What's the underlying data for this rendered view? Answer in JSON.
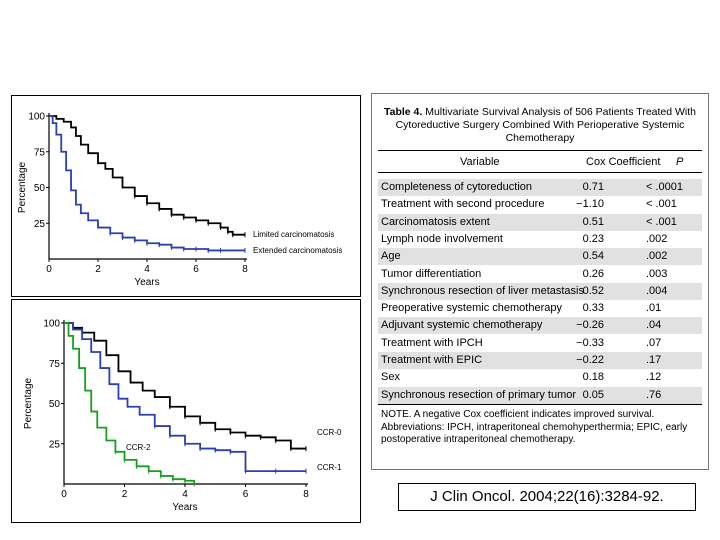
{
  "chart_data": [
    {
      "type": "line",
      "ylabel": "Percentage",
      "xlabel": "Years",
      "xlim": [
        0,
        8
      ],
      "ylim": [
        0,
        100
      ],
      "x_ticks": [
        "0",
        "2",
        "4",
        "6",
        "8"
      ],
      "y_ticks": [
        "25",
        "50",
        "75",
        "100"
      ],
      "series": [
        {
          "name": "Limited carcinomatosis",
          "color": "#000000",
          "x": [
            0,
            0.3,
            0.6,
            0.9,
            1.1,
            1.3,
            1.6,
            2.0,
            2.3,
            2.6,
            3.0,
            3.5,
            4.0,
            4.5,
            5.0,
            5.5,
            6.0,
            6.5,
            7.0,
            7.3,
            7.5,
            8.0
          ],
          "y": [
            100,
            98,
            96,
            92,
            86,
            80,
            74,
            67,
            63,
            57,
            50,
            44,
            39,
            35,
            31,
            29,
            27,
            25,
            22,
            19,
            17,
            17
          ]
        },
        {
          "name": "Extended carcinomatosis",
          "color": "#2a3fb0",
          "x": [
            0,
            0.15,
            0.3,
            0.5,
            0.7,
            0.9,
            1.1,
            1.3,
            1.6,
            2.0,
            2.5,
            3.0,
            3.5,
            4.0,
            4.5,
            5.0,
            5.5,
            6.0,
            6.5,
            7.0,
            8.0
          ],
          "y": [
            100,
            95,
            87,
            75,
            62,
            48,
            38,
            32,
            27,
            22,
            18,
            15,
            13,
            11,
            10,
            8,
            7,
            7,
            6,
            6,
            6
          ]
        }
      ]
    },
    {
      "type": "line",
      "ylabel": "Percentage",
      "xlabel": "Years",
      "xlim": [
        0,
        8
      ],
      "ylim": [
        0,
        100
      ],
      "x_ticks": [
        "0",
        "2",
        "4",
        "6",
        "8"
      ],
      "y_ticks": [
        "25",
        "50",
        "75",
        "100"
      ],
      "series": [
        {
          "name": "CCR-0",
          "color": "#000000",
          "x": [
            0,
            0.3,
            0.6,
            1.0,
            1.4,
            1.8,
            2.2,
            2.6,
            3.0,
            3.5,
            4.0,
            4.5,
            5.0,
            5.5,
            6.0,
            6.5,
            7.0,
            7.5,
            8.0
          ],
          "y": [
            100,
            97,
            94,
            89,
            80,
            70,
            63,
            58,
            54,
            48,
            42,
            38,
            34,
            32,
            30,
            29,
            27,
            22,
            22
          ]
        },
        {
          "name": "CCR-1",
          "color": "#2a3fb0",
          "x": [
            0,
            0.3,
            0.6,
            0.9,
            1.2,
            1.5,
            1.8,
            2.1,
            2.5,
            3.0,
            3.5,
            4.0,
            4.5,
            5.0,
            5.5,
            6.0,
            7.0,
            8.0
          ],
          "y": [
            100,
            96,
            90,
            82,
            72,
            62,
            53,
            48,
            43,
            36,
            30,
            25,
            22,
            21,
            20,
            8,
            8,
            8
          ]
        },
        {
          "name": "CCR-2",
          "color": "#15a11e",
          "x": [
            0,
            0.15,
            0.3,
            0.5,
            0.7,
            0.9,
            1.1,
            1.4,
            1.7,
            2.0,
            2.4,
            2.8,
            3.2,
            3.6,
            4.0,
            4.3
          ],
          "y": [
            100,
            92,
            84,
            72,
            58,
            45,
            35,
            27,
            20,
            15,
            11,
            8,
            5,
            3,
            2,
            0
          ]
        }
      ]
    }
  ],
  "table": {
    "title_bold": "Table 4.",
    "title_rest": "Multivariate Survival Analysis of 506 Patients Treated With Cytoreductive Surgery Combined With Perioperative Systemic Chemotherapy",
    "headers": {
      "variable": "Variable",
      "coef": "Cox Coefficient",
      "p": "P"
    },
    "rows": [
      {
        "variable": "Completeness of cytoreduction",
        "coef": "0.71",
        "p": "< .0001"
      },
      {
        "variable": "Treatment with second procedure",
        "coef": "−1.10",
        "p": "< .001"
      },
      {
        "variable": "Carcinomatosis extent",
        "coef": "0.51",
        "p": "< .001"
      },
      {
        "variable": "Lymph node involvement",
        "coef": "0.23",
        "p": ".002"
      },
      {
        "variable": "Age",
        "coef": "0.54",
        "p": ".002"
      },
      {
        "variable": "Tumor differentiation",
        "coef": "0.26",
        "p": ".003"
      },
      {
        "variable": "Synchronous resection of liver metastasis",
        "coef": "0.52",
        "p": ".004"
      },
      {
        "variable": "Preoperative systemic chemotherapy",
        "coef": "0.33",
        "p": ".01"
      },
      {
        "variable": "Adjuvant systemic chemotherapy",
        "coef": "−0.26",
        "p": ".04"
      },
      {
        "variable": "Treatment with IPCH",
        "coef": "−0.33",
        "p": ".07"
      },
      {
        "variable": "Treatment with EPIC",
        "coef": "−0.22",
        "p": ".17"
      },
      {
        "variable": "Sex",
        "coef": "0.18",
        "p": ".12"
      },
      {
        "variable": "Synchronous resection of primary tumor",
        "coef": "0.05",
        "p": ".76"
      }
    ],
    "note": "NOTE. A negative Cox coefficient indicates improved survival.",
    "abbrev": "Abbreviations: IPCH, intraperitoneal chemohyperthermia; EPIC, early postoperative intraperitoneal chemotherapy."
  },
  "citation": "J Clin Oncol. 2004;22(16):3284-92."
}
